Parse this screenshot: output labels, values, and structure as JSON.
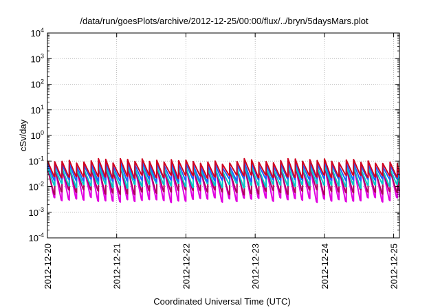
{
  "chart_data": {
    "type": "line",
    "title": "/data/run/goesPlots/archive/2012-12-25/00:00/flux/../bryn/5daysMars.plot",
    "xlabel": "Coordinated Universal Time (UTC)",
    "ylabel": "cSv/day",
    "x_ticks": [
      "2012-12-20",
      "2012-12-21",
      "2012-12-22",
      "2012-12-23",
      "2012-12-24",
      "2012-12-25"
    ],
    "xlim": [
      "2012-12-20",
      "2012-12-25T02:00"
    ],
    "y_scale": "log",
    "ylim": [
      0.0001,
      10000
    ],
    "y_ticks": [
      {
        "base": "10",
        "exp": "-4"
      },
      {
        "base": "10",
        "exp": "-3"
      },
      {
        "base": "10",
        "exp": "-2"
      },
      {
        "base": "10",
        "exp": "-1"
      },
      {
        "base": "10",
        "exp": "0"
      },
      {
        "base": "10",
        "exp": "1"
      },
      {
        "base": "10",
        "exp": "2"
      },
      {
        "base": "10",
        "exp": "3"
      },
      {
        "base": "10",
        "exp": "4"
      }
    ],
    "grid": true,
    "series_colors": [
      "#e000e0",
      "#b00060",
      "#00c8c8",
      "#2060ff",
      "#d00020"
    ],
    "series": [
      {
        "color": "#e000e0",
        "peak": 0.06,
        "trough": 0.0025,
        "trough_max": 0.004
      },
      {
        "color": "#b00060",
        "peak": 0.05,
        "trough": 0.005,
        "trough_max": 0.008
      },
      {
        "color": "#00c8c8",
        "peak": 0.055,
        "trough": 0.009,
        "trough_max": 0.014
      },
      {
        "color": "#2060ff",
        "peak": 0.075,
        "trough": 0.016,
        "trough_max": 0.022
      },
      {
        "color": "#d00020",
        "peak": 0.1,
        "trough": 0.022,
        "trough_max": 0.03
      }
    ],
    "cycles_per_day": 9.5
  }
}
